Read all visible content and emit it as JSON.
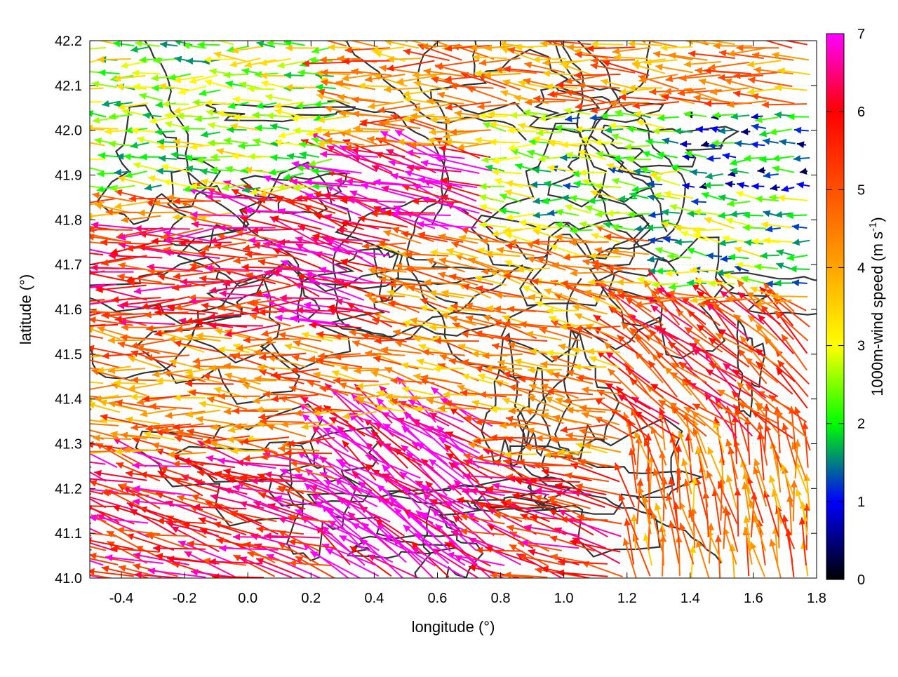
{
  "chart_data": {
    "type": "vector-field",
    "xlabel": "longitude (°)",
    "ylabel": "latitude (°)",
    "xlim": [
      -0.5,
      1.8
    ],
    "ylim": [
      41.0,
      42.2
    ],
    "xticks": [
      -0.4,
      -0.2,
      0.0,
      0.2,
      0.4,
      0.6,
      0.8,
      1.0,
      1.2,
      1.4,
      1.6,
      1.8
    ],
    "yticks": [
      41.0,
      41.1,
      41.2,
      41.3,
      41.4,
      41.5,
      41.6,
      41.7,
      41.8,
      41.9,
      42.0,
      42.1,
      42.2
    ],
    "xtick_labels": [
      "-0.4",
      "-0.2",
      "0.0",
      "0.2",
      "0.4",
      "0.6",
      "0.8",
      "1.0",
      "1.2",
      "1.4",
      "1.6",
      "1.8"
    ],
    "ytick_labels": [
      "41.0",
      "41.1",
      "41.2",
      "41.3",
      "41.4",
      "41.5",
      "41.6",
      "41.7",
      "41.8",
      "41.9",
      "42.0",
      "42.1",
      "42.2"
    ],
    "grid": true,
    "colorbar": {
      "label": "1000m-wind speed (m s-1)",
      "label_main": "1000m-wind speed (m s",
      "label_sup": "-1",
      "label_end": ")",
      "range": [
        0,
        7
      ],
      "ticks": [
        0,
        1,
        2,
        3,
        4,
        5,
        6,
        7
      ],
      "tick_labels": [
        "0",
        "1",
        "2",
        "3",
        "4",
        "5",
        "6",
        "7"
      ],
      "stops": [
        {
          "value": 0,
          "color": "#000000"
        },
        {
          "value": 1,
          "color": "#0000ff"
        },
        {
          "value": 2,
          "color": "#00ff00"
        },
        {
          "value": 3,
          "color": "#ffff00"
        },
        {
          "value": 4,
          "color": "#ffa500"
        },
        {
          "value": 5,
          "color": "#ff5000"
        },
        {
          "value": 6,
          "color": "#ff0000"
        },
        {
          "value": 7,
          "color": "#ff00ff"
        }
      ]
    },
    "wind_field": {
      "note_units": "m s-1",
      "grid_step_lon": 0.1,
      "grid_step_lat": 0.05,
      "regions": [
        {
          "name_visible": false,
          "lon": [
            -0.5,
            0.3
          ],
          "lat": [
            41.85,
            42.2
          ],
          "speed": 2.6,
          "direction_deg": 180
        },
        {
          "name_visible": false,
          "lon": [
            0.0,
            0.8
          ],
          "lat": [
            41.55,
            41.95
          ],
          "speed": 6.6,
          "direction_deg": 165
        },
        {
          "name_visible": false,
          "lon": [
            -0.5,
            0.2
          ],
          "lat": [
            41.55,
            41.8
          ],
          "speed": 5.8,
          "direction_deg": 180
        },
        {
          "name_visible": false,
          "lon": [
            0.8,
            1.8
          ],
          "lat": [
            41.65,
            42.05
          ],
          "speed": 2.3,
          "direction_deg": 175
        },
        {
          "name_visible": false,
          "lon": [
            1.4,
            1.8
          ],
          "lat": [
            41.85,
            42.05
          ],
          "speed": 1.3,
          "direction_deg": 180
        },
        {
          "name_visible": false,
          "lon": [
            -0.5,
            1.8
          ],
          "lat": [
            41.0,
            41.25
          ],
          "speed": 5.9,
          "direction_deg": 165
        },
        {
          "name_visible": false,
          "lon": [
            0.3,
            0.8
          ],
          "lat": [
            41.0,
            41.35
          ],
          "speed": 7.0,
          "direction_deg": 145
        },
        {
          "name_visible": false,
          "lon": [
            1.2,
            1.8
          ],
          "lat": [
            41.0,
            41.3
          ],
          "speed": 4.6,
          "direction_deg": 100
        },
        {
          "name_visible": false,
          "lon": [
            1.2,
            1.8
          ],
          "lat": [
            41.3,
            41.6
          ],
          "speed": 5.4,
          "direction_deg": 140
        },
        {
          "name_visible": false,
          "lon": [
            0.5,
            1.3
          ],
          "lat": [
            41.35,
            41.75
          ],
          "speed": 4.3,
          "direction_deg": 170
        }
      ]
    }
  }
}
